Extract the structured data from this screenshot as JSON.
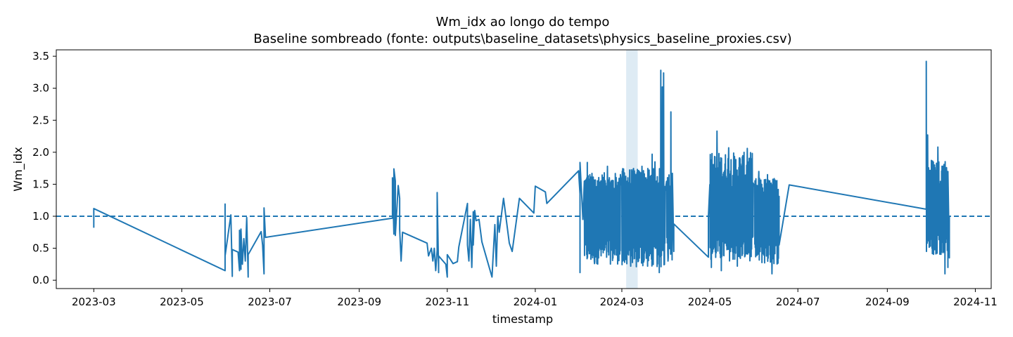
{
  "chart_data": {
    "type": "line",
    "title": "Wm_idx ao longo do tempo",
    "subtitle": "Baseline sombreado (fonte: outputs\\baseline_datasets\\physics_baseline_proxies.csv)",
    "xlabel": "timestamp",
    "ylabel": "Wm_idx",
    "xlim": [
      "2023-02-03",
      "2024-11-12"
    ],
    "ylim": [
      -0.13,
      3.6
    ],
    "x_ticks": [
      "2023-03-01",
      "2023-05-01",
      "2023-07-01",
      "2023-09-01",
      "2023-11-01",
      "2024-01-01",
      "2024-03-01",
      "2024-05-01",
      "2024-07-01",
      "2024-09-01",
      "2024-11-01"
    ],
    "x_tick_labels": [
      "2023-03",
      "2023-05",
      "2023-07",
      "2023-09",
      "2023-11",
      "2024-01",
      "2024-03",
      "2024-05",
      "2024-07",
      "2024-09",
      "2024-11"
    ],
    "y_ticks": [
      0.0,
      0.5,
      1.0,
      1.5,
      2.0,
      2.5,
      3.0,
      3.5
    ],
    "y_tick_labels": [
      "0.0",
      "0.5",
      "1.0",
      "1.5",
      "2.0",
      "2.5",
      "3.0",
      "3.5"
    ],
    "reference_line": {
      "y": 1.0,
      "style": "dashed",
      "color": "#1f77b4"
    },
    "baseline_shade": {
      "x_start": "2024-03-04",
      "x_end": "2024-03-12",
      "color": "#1f77b4",
      "opacity": 0.15
    },
    "series": [
      {
        "color": "#1f77b4",
        "points": [
          [
            "2023-03-01",
            0.82
          ],
          [
            "2023-03-01",
            1.12
          ],
          [
            "2023-05-31",
            0.15
          ],
          [
            "2023-05-31",
            1.19
          ],
          [
            "2023-05-31",
            0.38
          ],
          [
            "2023-06-04",
            1.02
          ],
          [
            "2023-06-05",
            0.06
          ],
          [
            "2023-06-05",
            0.48
          ],
          [
            "2023-06-09",
            0.44
          ],
          [
            "2023-06-10",
            0.15
          ],
          [
            "2023-06-10",
            0.78
          ],
          [
            "2023-06-11",
            0.17
          ],
          [
            "2023-06-11",
            0.8
          ],
          [
            "2023-06-12",
            0.25
          ],
          [
            "2023-06-13",
            0.65
          ],
          [
            "2023-06-14",
            0.3
          ],
          [
            "2023-06-15",
            0.98
          ],
          [
            "2023-06-16",
            0.05
          ],
          [
            "2023-06-16",
            0.4
          ],
          [
            "2023-06-25",
            0.76
          ],
          [
            "2023-06-26",
            0.55
          ],
          [
            "2023-06-27",
            0.1
          ],
          [
            "2023-06-27",
            1.13
          ],
          [
            "2023-06-28",
            0.67
          ],
          [
            "2023-09-24",
            0.97
          ],
          [
            "2023-09-24",
            1.6
          ],
          [
            "2023-09-25",
            0.72
          ],
          [
            "2023-09-25",
            1.74
          ],
          [
            "2023-09-26",
            1.55
          ],
          [
            "2023-09-26",
            0.7
          ],
          [
            "2023-09-28",
            1.48
          ],
          [
            "2023-09-29",
            1.28
          ],
          [
            "2023-09-29",
            0.8
          ],
          [
            "2023-09-30",
            0.3
          ],
          [
            "2023-10-01",
            0.75
          ],
          [
            "2023-10-18",
            0.58
          ],
          [
            "2023-10-19",
            0.38
          ],
          [
            "2023-10-21",
            0.5
          ],
          [
            "2023-10-22",
            0.3
          ],
          [
            "2023-10-23",
            0.5
          ],
          [
            "2023-10-24",
            0.15
          ],
          [
            "2023-10-25",
            0.47
          ],
          [
            "2023-10-25",
            1.37
          ],
          [
            "2023-10-26",
            0.12
          ],
          [
            "2023-10-26",
            0.38
          ],
          [
            "2023-10-31",
            0.25
          ],
          [
            "2023-11-01",
            0.05
          ],
          [
            "2023-11-01",
            0.4
          ],
          [
            "2023-11-05",
            0.26
          ],
          [
            "2023-11-08",
            0.29
          ],
          [
            "2023-11-09",
            0.52
          ],
          [
            "2023-11-15",
            1.2
          ],
          [
            "2023-11-15",
            0.55
          ],
          [
            "2023-11-16",
            0.3
          ],
          [
            "2023-11-17",
            0.95
          ],
          [
            "2023-11-18",
            0.2
          ],
          [
            "2023-11-19",
            1.07
          ],
          [
            "2023-11-19",
            0.55
          ],
          [
            "2023-11-20",
            1.09
          ],
          [
            "2023-11-21",
            0.93
          ],
          [
            "2023-11-23",
            0.95
          ],
          [
            "2023-11-25",
            0.6
          ],
          [
            "2023-12-02",
            0.05
          ],
          [
            "2023-12-04",
            0.87
          ],
          [
            "2023-12-05",
            0.22
          ],
          [
            "2023-12-06",
            1.0
          ],
          [
            "2023-12-07",
            0.75
          ],
          [
            "2023-12-10",
            1.28
          ],
          [
            "2023-12-14",
            0.58
          ],
          [
            "2023-12-16",
            0.45
          ],
          [
            "2023-12-21",
            1.28
          ],
          [
            "2023-12-31",
            1.05
          ],
          [
            "2024-01-01",
            1.47
          ],
          [
            "2024-01-08",
            1.38
          ],
          [
            "2024-01-09",
            1.2
          ],
          [
            "2024-01-31",
            1.71
          ],
          [
            "2024-02-01",
            1.35
          ],
          [
            "2024-02-01",
            0.12
          ],
          [
            "2024-02-01",
            0.93
          ],
          [
            "2024-02-01",
            1.84
          ],
          [
            "2024-02-03",
            0.95
          ]
        ]
      }
    ]
  }
}
